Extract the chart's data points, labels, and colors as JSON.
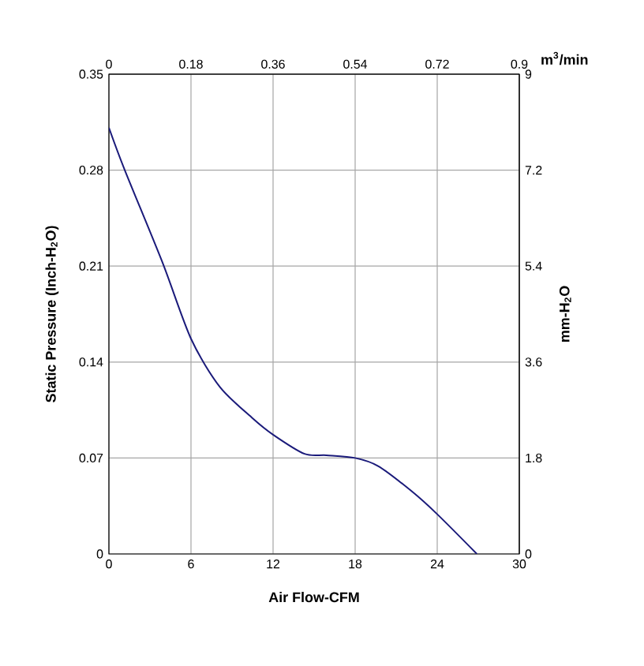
{
  "chart_data": {
    "type": "line",
    "xlabel": "Air Flow-CFM",
    "ylabel": "Static Pressure (Inch-H$_{2}$O)",
    "y2label": "mm-H$_{2}$O",
    "x2label": "m$^{3}$/min",
    "x": [
      0,
      1.16,
      3.9,
      6,
      8.1,
      10.5,
      12,
      14.3,
      15.9,
      18,
      19.7,
      22.1,
      24,
      26.9
    ],
    "series": [
      {
        "color": "#1a1a7a",
        "values": [
          0.311,
          0.28,
          0.213,
          0.157,
          0.122,
          0.099,
          0.087,
          0.073,
          0.072,
          0.07,
          0.064,
          0.046,
          0.029,
          0
        ]
      }
    ],
    "xlim": [
      0,
      30
    ],
    "xticks": [
      0,
      6,
      12,
      18,
      24,
      30
    ],
    "ylim": [
      0,
      0.35
    ],
    "yticks": [
      0,
      0.07,
      0.14,
      0.21,
      0.28,
      0.35
    ],
    "y2lim": [
      0,
      9
    ],
    "y2ticks": [
      0,
      1.8,
      3.6,
      5.4,
      7.2,
      9
    ],
    "x2lim": [
      0,
      0.9
    ],
    "x2ticks": [
      0,
      0.18,
      0.36,
      0.54,
      0.72,
      0.9
    ],
    "grid": true,
    "marker": "none",
    "line_style": "solid"
  }
}
